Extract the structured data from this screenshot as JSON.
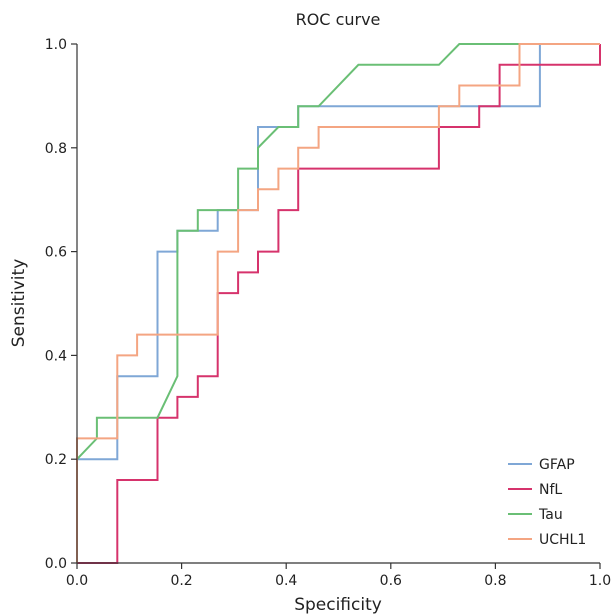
{
  "chart_data": {
    "type": "line",
    "title": "ROC curve",
    "xlabel": "Specificity",
    "ylabel": "Sensitivity",
    "xlim": [
      0,
      1
    ],
    "ylim": [
      0,
      1
    ],
    "xticks": [
      "0.0",
      "0.2",
      "0.4",
      "0.6",
      "0.8",
      "1.0"
    ],
    "yticks": [
      "0.0",
      "0.2",
      "0.4",
      "0.6",
      "0.8",
      "1.0"
    ],
    "grid": false,
    "legend_position": "bottom-right",
    "series": [
      {
        "name": "GFAP",
        "color": "#7fa7d6",
        "points": [
          [
            0,
            0.2
          ],
          [
            0.077,
            0.2
          ],
          [
            0.077,
            0.36
          ],
          [
            0.154,
            0.36
          ],
          [
            0.154,
            0.6
          ],
          [
            0.192,
            0.6
          ],
          [
            0.192,
            0.64
          ],
          [
            0.269,
            0.64
          ],
          [
            0.269,
            0.68
          ],
          [
            0.346,
            0.68
          ],
          [
            0.346,
            0.84
          ],
          [
            0.423,
            0.84
          ],
          [
            0.423,
            0.88
          ],
          [
            0.885,
            0.88
          ],
          [
            0.885,
            1.0
          ],
          [
            1.0,
            1.0
          ]
        ]
      },
      {
        "name": "NfL",
        "color": "#d6336c",
        "points": [
          [
            0,
            0
          ],
          [
            0.077,
            0
          ],
          [
            0.077,
            0.16
          ],
          [
            0.154,
            0.16
          ],
          [
            0.154,
            0.28
          ],
          [
            0.192,
            0.28
          ],
          [
            0.192,
            0.32
          ],
          [
            0.231,
            0.32
          ],
          [
            0.231,
            0.36
          ],
          [
            0.269,
            0.36
          ],
          [
            0.269,
            0.52
          ],
          [
            0.308,
            0.52
          ],
          [
            0.308,
            0.56
          ],
          [
            0.346,
            0.56
          ],
          [
            0.346,
            0.6
          ],
          [
            0.385,
            0.6
          ],
          [
            0.385,
            0.68
          ],
          [
            0.423,
            0.68
          ],
          [
            0.423,
            0.76
          ],
          [
            0.692,
            0.76
          ],
          [
            0.692,
            0.84
          ],
          [
            0.769,
            0.84
          ],
          [
            0.769,
            0.88
          ],
          [
            0.808,
            0.88
          ],
          [
            0.808,
            0.96
          ],
          [
            0.846,
            0.96
          ],
          [
            0.846,
            0.96
          ],
          [
            0.923,
            0.96
          ],
          [
            1.0,
            0.96
          ],
          [
            1.0,
            1.0
          ]
        ]
      },
      {
        "name": "Tau",
        "color": "#6abf75",
        "points": [
          [
            0,
            0.2
          ],
          [
            0.038,
            0.24
          ],
          [
            0.038,
            0.28
          ],
          [
            0.154,
            0.28
          ],
          [
            0.192,
            0.36
          ],
          [
            0.192,
            0.64
          ],
          [
            0.231,
            0.64
          ],
          [
            0.231,
            0.68
          ],
          [
            0.308,
            0.68
          ],
          [
            0.308,
            0.76
          ],
          [
            0.346,
            0.76
          ],
          [
            0.346,
            0.8
          ],
          [
            0.385,
            0.84
          ],
          [
            0.423,
            0.84
          ],
          [
            0.423,
            0.88
          ],
          [
            0.462,
            0.88
          ],
          [
            0.538,
            0.96
          ],
          [
            0.692,
            0.96
          ],
          [
            0.731,
            1.0
          ],
          [
            1.0,
            1.0
          ]
        ]
      },
      {
        "name": "UCHL1",
        "color": "#f4a582",
        "points": [
          [
            0,
            0
          ],
          [
            0,
            0.24
          ],
          [
            0.077,
            0.24
          ],
          [
            0.077,
            0.4
          ],
          [
            0.115,
            0.4
          ],
          [
            0.115,
            0.44
          ],
          [
            0.269,
            0.44
          ],
          [
            0.269,
            0.6
          ],
          [
            0.308,
            0.6
          ],
          [
            0.308,
            0.68
          ],
          [
            0.346,
            0.68
          ],
          [
            0.346,
            0.72
          ],
          [
            0.385,
            0.72
          ],
          [
            0.385,
            0.76
          ],
          [
            0.423,
            0.76
          ],
          [
            0.423,
            0.8
          ],
          [
            0.462,
            0.8
          ],
          [
            0.462,
            0.84
          ],
          [
            0.692,
            0.84
          ],
          [
            0.692,
            0.88
          ],
          [
            0.731,
            0.88
          ],
          [
            0.731,
            0.92
          ],
          [
            0.846,
            0.92
          ],
          [
            0.846,
            1.0
          ],
          [
            1.0,
            1.0
          ]
        ]
      }
    ]
  }
}
